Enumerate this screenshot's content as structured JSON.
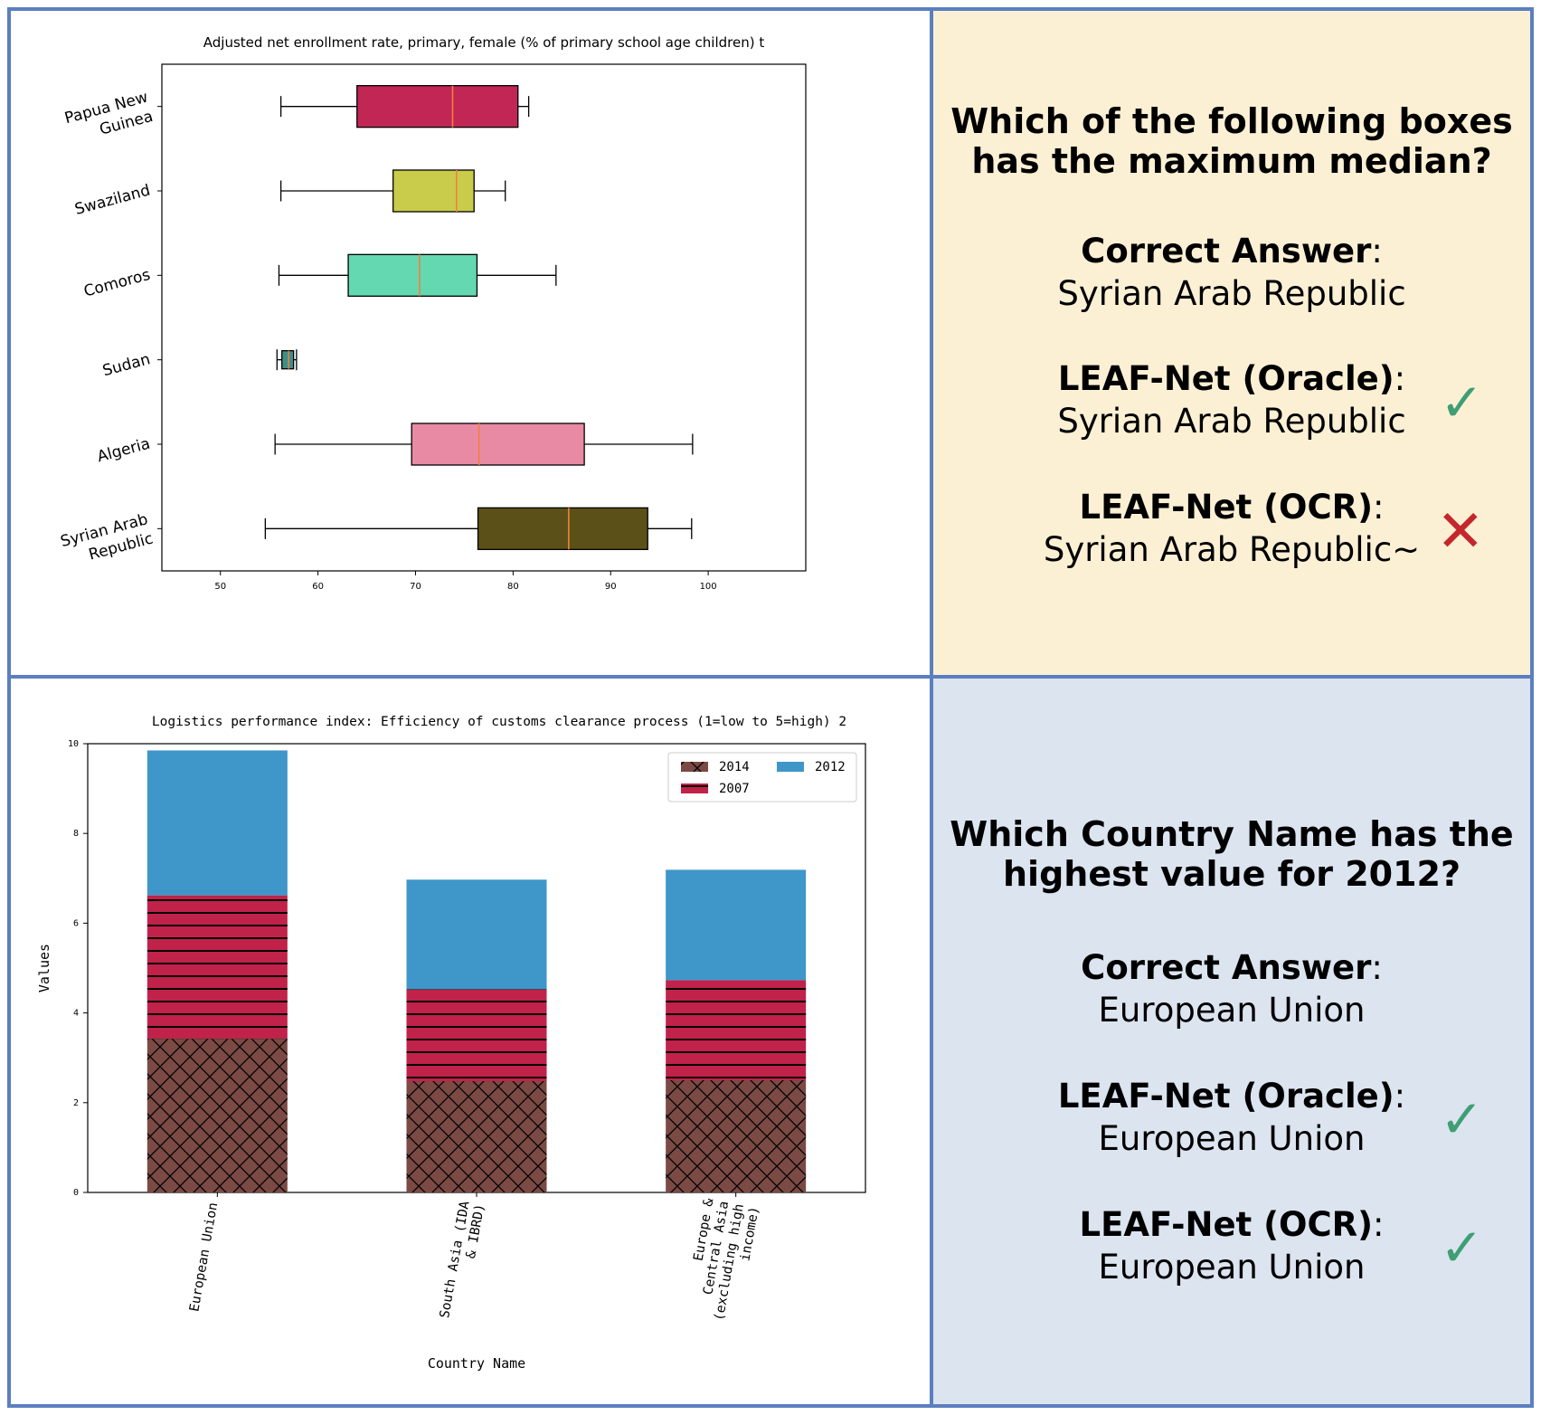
{
  "colors": {
    "border": "#5b7fc0",
    "top_right_bg": "#fcf0d4",
    "bottom_right_bg": "#dce4f0",
    "check": "#3f9e74",
    "cross": "#c4272b"
  },
  "top_panel": {
    "question": [
      "Which of the following boxes",
      "has the maximum median?"
    ],
    "correct_label": "Correct Answer",
    "correct_value": "Syrian Arab Republic",
    "oracle_label": "LEAF-Net (Oracle)",
    "oracle_value": "Syrian Arab Republic",
    "oracle_mark": "✓",
    "ocr_label": "LEAF-Net (OCR)",
    "ocr_value": "Syrian Arab Republic~",
    "ocr_mark": "✕"
  },
  "bottom_panel": {
    "question": [
      "Which Country Name has the",
      "highest value for 2012?"
    ],
    "correct_label": "Correct Answer",
    "correct_value": "European Union",
    "oracle_label": "LEAF-Net (Oracle)",
    "oracle_value": "European Union",
    "oracle_mark": "✓",
    "ocr_label": "LEAF-Net (OCR)",
    "ocr_value": "European Union",
    "ocr_mark": "✓"
  },
  "chart_data": [
    {
      "type": "box",
      "orientation": "horizontal",
      "title": "Adjusted net enrollment rate, primary, female (% of primary school age children) t",
      "xlim": [
        44,
        110
      ],
      "xticks": [
        50,
        60,
        70,
        80,
        90,
        100
      ],
      "categories": [
        {
          "name": [
            "Papua New",
            "Guinea"
          ],
          "whisker_low": 56.2,
          "q1": 64,
          "median": 73.8,
          "q3": 80.5,
          "whisker_high": 81.6,
          "color": "#c12655"
        },
        {
          "name": [
            "Swaziland"
          ],
          "whisker_low": 56.2,
          "q1": 67.7,
          "median": 74.2,
          "q3": 76,
          "whisker_high": 79.2,
          "color": "#c9cc4a"
        },
        {
          "name": [
            "Comoros"
          ],
          "whisker_low": 56,
          "q1": 63.1,
          "median": 70.4,
          "q3": 76.3,
          "whisker_high": 84.4,
          "color": "#64d8b0"
        },
        {
          "name": [
            "Sudan"
          ],
          "whisker_low": 55.8,
          "q1": 56.3,
          "median": 57,
          "q3": 57.5,
          "whisker_high": 57.8,
          "color": "#3e8f88"
        },
        {
          "name": [
            "Algeria"
          ],
          "whisker_low": 55.6,
          "q1": 69.6,
          "median": 76.5,
          "q3": 87.3,
          "whisker_high": 98.4,
          "color": "#e98aa5"
        },
        {
          "name": [
            "Syrian Arab",
            "Republic"
          ],
          "whisker_low": 54.6,
          "q1": 76.4,
          "median": 85.7,
          "q3": 93.8,
          "whisker_high": 98.3,
          "color": "#5b5118"
        }
      ],
      "median_color": "#f08040"
    },
    {
      "type": "bar",
      "stacked": true,
      "title": "Logistics performance index: Efficiency of customs clearance process (1=low to 5=high) 2",
      "xlabel": "Country Name",
      "ylabel": "Values",
      "ylim": [
        0,
        10
      ],
      "yticks": [
        0,
        2,
        4,
        6,
        8,
        10
      ],
      "categories": [
        [
          "European Union"
        ],
        [
          "South Asia (IDA",
          "& IBRD)"
        ],
        [
          "Europe &",
          "Central Asia",
          "(excluding high",
          "income)"
        ]
      ],
      "series": [
        {
          "name": "2014",
          "values": [
            3.42,
            2.48,
            2.5
          ],
          "color": "#7b4a44",
          "pattern": "crosshatch"
        },
        {
          "name": "2007",
          "values": [
            3.2,
            2.05,
            2.23
          ],
          "color": "#c1224a",
          "pattern": "horizontal"
        },
        {
          "name": "2012",
          "values": [
            3.23,
            2.44,
            2.46
          ],
          "color": "#3f96c9",
          "pattern": "none"
        }
      ],
      "legend": {
        "position": "top-right"
      }
    }
  ]
}
